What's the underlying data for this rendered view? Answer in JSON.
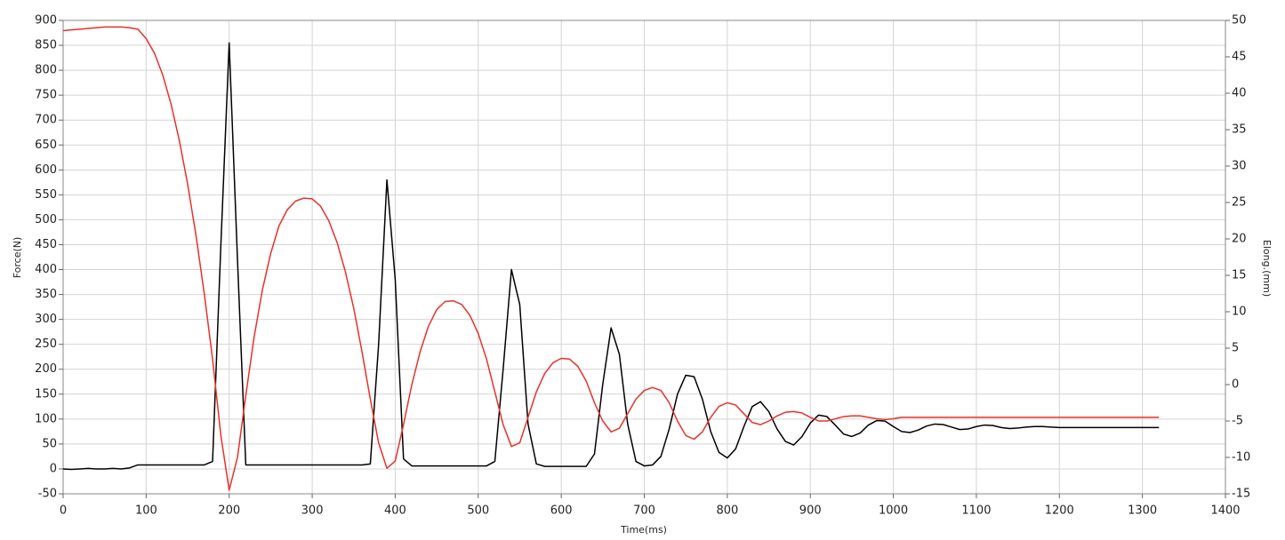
{
  "chart_data": {
    "type": "line",
    "xlabel": "Time(ms)",
    "ylabel": "Force(N)",
    "y2label": "Elong.(mm)",
    "x": [
      0,
      10,
      20,
      30,
      40,
      50,
      60,
      70,
      80,
      90,
      100,
      110,
      120,
      130,
      140,
      150,
      160,
      170,
      180,
      190,
      200,
      210,
      220,
      230,
      240,
      250,
      260,
      270,
      280,
      290,
      300,
      310,
      320,
      330,
      340,
      350,
      360,
      370,
      380,
      390,
      400,
      410,
      420,
      430,
      440,
      450,
      460,
      470,
      480,
      490,
      500,
      510,
      520,
      530,
      540,
      550,
      560,
      570,
      580,
      590,
      600,
      610,
      620,
      630,
      640,
      650,
      660,
      670,
      680,
      690,
      700,
      710,
      720,
      730,
      740,
      750,
      760,
      770,
      780,
      790,
      800,
      810,
      820,
      830,
      840,
      850,
      860,
      870,
      880,
      890,
      900,
      910,
      920,
      930,
      940,
      950,
      960,
      970,
      980,
      990,
      1000,
      1010,
      1020,
      1030,
      1040,
      1050,
      1060,
      1070,
      1080,
      1090,
      1100,
      1110,
      1120,
      1130,
      1140,
      1150,
      1160,
      1170,
      1180,
      1190,
      1200,
      1210,
      1220,
      1230,
      1240,
      1250,
      1260,
      1270,
      1280,
      1290,
      1300,
      1310,
      1320
    ],
    "series": [
      {
        "color": "#000000",
        "axis": "y",
        "values": [
          0,
          -1,
          0,
          1,
          0,
          0,
          1,
          0,
          2,
          8,
          8,
          8,
          8,
          8,
          8,
          8,
          8,
          8,
          15,
          450,
          855,
          420,
          8,
          8,
          8,
          8,
          8,
          8,
          8,
          8,
          8,
          8,
          8,
          8,
          8,
          8,
          8,
          10,
          250,
          580,
          380,
          20,
          6,
          6,
          6,
          6,
          6,
          6,
          6,
          6,
          6,
          6,
          15,
          200,
          400,
          330,
          90,
          10,
          5,
          5,
          5,
          5,
          5,
          5,
          30,
          170,
          283,
          230,
          90,
          15,
          6,
          8,
          25,
          80,
          150,
          188,
          185,
          140,
          75,
          33,
          22,
          40,
          85,
          125,
          135,
          115,
          80,
          55,
          48,
          65,
          92,
          108,
          105,
          88,
          70,
          65,
          72,
          88,
          97,
          96,
          85,
          75,
          73,
          78,
          86,
          90,
          89,
          84,
          79,
          80,
          85,
          88,
          87,
          83,
          81,
          82,
          84,
          85,
          85,
          84,
          83,
          83,
          83,
          83,
          83,
          83,
          83,
          83,
          83,
          83,
          83,
          83,
          83
        ]
      },
      {
        "color": "#e8312a",
        "axis": "y2",
        "values": [
          48.6,
          48.7,
          48.8,
          48.9,
          49.0,
          49.1,
          49.1,
          49.1,
          49.0,
          48.8,
          47.5,
          45.5,
          42.5,
          38.5,
          33.5,
          27.5,
          20.5,
          12.5,
          3.5,
          -7,
          -14.5,
          -10,
          -1.5,
          6.5,
          13,
          18,
          21.8,
          24,
          25.2,
          25.6,
          25.5,
          24.5,
          22.5,
          19.5,
          15.5,
          10.5,
          4.5,
          -2,
          -8,
          -11.5,
          -10.5,
          -5.5,
          0,
          4.5,
          8,
          10.3,
          11.4,
          11.5,
          11,
          9.5,
          7,
          3.5,
          -1,
          -5.5,
          -8.5,
          -8,
          -4.5,
          -1,
          1.5,
          3,
          3.6,
          3.5,
          2.5,
          0.5,
          -2.5,
          -5,
          -6.5,
          -6,
          -4,
          -2,
          -0.8,
          -0.4,
          -0.8,
          -2.5,
          -5,
          -7,
          -7.5,
          -6.5,
          -4.5,
          -3,
          -2.5,
          -2.8,
          -4,
          -5.2,
          -5.5,
          -5,
          -4.3,
          -3.8,
          -3.7,
          -3.9,
          -4.5,
          -5,
          -5,
          -4.7,
          -4.4,
          -4.3,
          -4.3,
          -4.5,
          -4.7,
          -4.8,
          -4.7,
          -4.5,
          -4.5,
          -4.5,
          -4.5,
          -4.5,
          -4.5,
          -4.5,
          -4.5,
          -4.5,
          -4.5,
          -4.5,
          -4.5,
          -4.5,
          -4.5,
          -4.5,
          -4.5,
          -4.5,
          -4.5,
          -4.5,
          -4.5,
          -4.5,
          -4.5,
          -4.5,
          -4.5,
          -4.5,
          -4.5,
          -4.5,
          -4.5,
          -4.5,
          -4.5,
          -4.5,
          -4.5
        ]
      }
    ],
    "xlim": [
      0,
      1400
    ],
    "xticks": [
      0,
      100,
      200,
      300,
      400,
      500,
      600,
      700,
      800,
      900,
      1000,
      1100,
      1200,
      1300,
      1400
    ],
    "ylim": [
      -50,
      900
    ],
    "yticks": [
      -50,
      0,
      50,
      100,
      150,
      200,
      250,
      300,
      350,
      400,
      450,
      500,
      550,
      600,
      650,
      700,
      750,
      800,
      850,
      900
    ],
    "y2lim": [
      -15,
      50
    ],
    "y2ticks": [
      -15,
      -10,
      -5,
      0,
      5,
      10,
      15,
      20,
      25,
      30,
      35,
      40,
      45,
      50
    ],
    "grid": true
  }
}
